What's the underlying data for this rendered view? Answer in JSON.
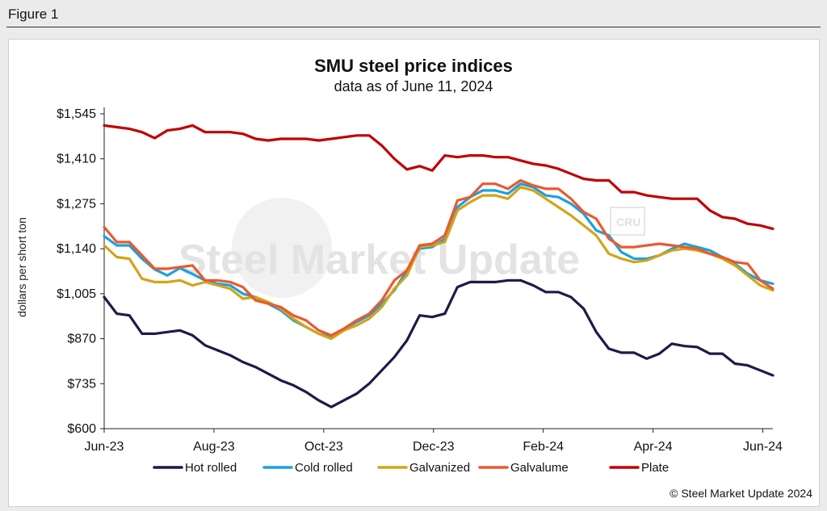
{
  "figure_label": "Figure 1",
  "watermark": "Steel Market Update",
  "watermark_badge": "CRU",
  "copyright": "© Steel Market Update 2024",
  "colors": {
    "Hot rolled": "#1b1c48",
    "Cold rolled": "#1aa2df",
    "Galvanized": "#d4a317",
    "Galvalume": "#ea5a2e",
    "Plate": "#c00000"
  },
  "chart_data": {
    "type": "line",
    "title": "SMU steel price indices",
    "subtitle": "data as of June 11, 2024",
    "ylabel": "dollars per short ton",
    "xlabel": "",
    "ylim": [
      600,
      1545
    ],
    "yticks": [
      600,
      735,
      870,
      1005,
      1140,
      1275,
      1410,
      1545
    ],
    "ytick_labels": [
      "$600",
      "$735",
      "$870",
      "$1,005",
      "$1,140",
      "$1,275",
      "$1,410",
      "$1,545"
    ],
    "xtick_labels": [
      "Jun-23",
      "Aug-23",
      "Oct-23",
      "Dec-23",
      "Feb-24",
      "Apr-24",
      "Jun-24"
    ],
    "xtick_weeks": [
      0,
      8.7,
      17.4,
      26.1,
      34.8,
      43.5,
      52.2
    ],
    "x_weeks": [
      0,
      1,
      2,
      3,
      4,
      5,
      6,
      7,
      8,
      9,
      10,
      11,
      12,
      13,
      14,
      15,
      16,
      17,
      18,
      19,
      20,
      21,
      22,
      23,
      24,
      25,
      26,
      27,
      28,
      29,
      30,
      31,
      32,
      33,
      34,
      35,
      36,
      37,
      38,
      39,
      40,
      41,
      42,
      43,
      44,
      45,
      46,
      47,
      48,
      49,
      50,
      51,
      52,
      53
    ],
    "legend_position": "bottom",
    "grid": false,
    "series": [
      {
        "name": "Hot rolled",
        "values": [
          995,
          945,
          940,
          885,
          885,
          890,
          895,
          880,
          850,
          835,
          820,
          800,
          785,
          765,
          745,
          730,
          710,
          685,
          665,
          685,
          705,
          735,
          775,
          815,
          865,
          940,
          935,
          945,
          1025,
          1040,
          1040,
          1040,
          1045,
          1045,
          1030,
          1010,
          1010,
          995,
          960,
          890,
          840,
          828,
          828,
          810,
          825,
          855,
          848,
          845,
          825,
          825,
          795,
          790,
          775,
          760
        ]
      },
      {
        "name": "Cold rolled",
        "values": [
          1178,
          1150,
          1150,
          1110,
          1078,
          1060,
          1082,
          1064,
          1045,
          1035,
          1030,
          1005,
          995,
          975,
          955,
          925,
          905,
          885,
          875,
          900,
          920,
          940,
          975,
          1015,
          1075,
          1140,
          1145,
          1170,
          1265,
          1295,
          1315,
          1315,
          1305,
          1335,
          1325,
          1300,
          1295,
          1275,
          1245,
          1195,
          1180,
          1130,
          1110,
          1110,
          1120,
          1140,
          1155,
          1145,
          1135,
          1115,
          1095,
          1065,
          1045,
          1035
        ]
      },
      {
        "name": "Galvanized",
        "values": [
          1150,
          1115,
          1110,
          1050,
          1040,
          1040,
          1045,
          1030,
          1040,
          1030,
          1020,
          990,
          995,
          980,
          960,
          930,
          905,
          885,
          870,
          895,
          910,
          930,
          965,
          1020,
          1060,
          1145,
          1150,
          1160,
          1255,
          1280,
          1300,
          1300,
          1290,
          1325,
          1315,
          1290,
          1265,
          1240,
          1210,
          1180,
          1125,
          1110,
          1100,
          1105,
          1120,
          1135,
          1140,
          1135,
          1125,
          1110,
          1090,
          1060,
          1030,
          1015
        ]
      },
      {
        "name": "Galvalume",
        "values": [
          1205,
          1160,
          1160,
          1120,
          1080,
          1080,
          1085,
          1090,
          1045,
          1045,
          1040,
          1025,
          985,
          975,
          965,
          940,
          925,
          895,
          880,
          900,
          925,
          945,
          985,
          1045,
          1075,
          1150,
          1155,
          1180,
          1285,
          1295,
          1335,
          1335,
          1320,
          1345,
          1330,
          1320,
          1320,
          1290,
          1250,
          1230,
          1170,
          1145,
          1145,
          1150,
          1155,
          1150,
          1145,
          1140,
          1125,
          1115,
          1100,
          1095,
          1045,
          1020
        ]
      },
      {
        "name": "Plate",
        "values": [
          1510,
          1505,
          1500,
          1490,
          1472,
          1495,
          1500,
          1510,
          1490,
          1490,
          1490,
          1485,
          1470,
          1465,
          1470,
          1470,
          1470,
          1465,
          1470,
          1475,
          1480,
          1480,
          1450,
          1410,
          1378,
          1388,
          1375,
          1420,
          1415,
          1420,
          1420,
          1415,
          1415,
          1405,
          1395,
          1390,
          1380,
          1365,
          1350,
          1345,
          1345,
          1310,
          1310,
          1300,
          1295,
          1290,
          1290,
          1290,
          1255,
          1235,
          1230,
          1215,
          1210,
          1200
        ]
      }
    ]
  }
}
